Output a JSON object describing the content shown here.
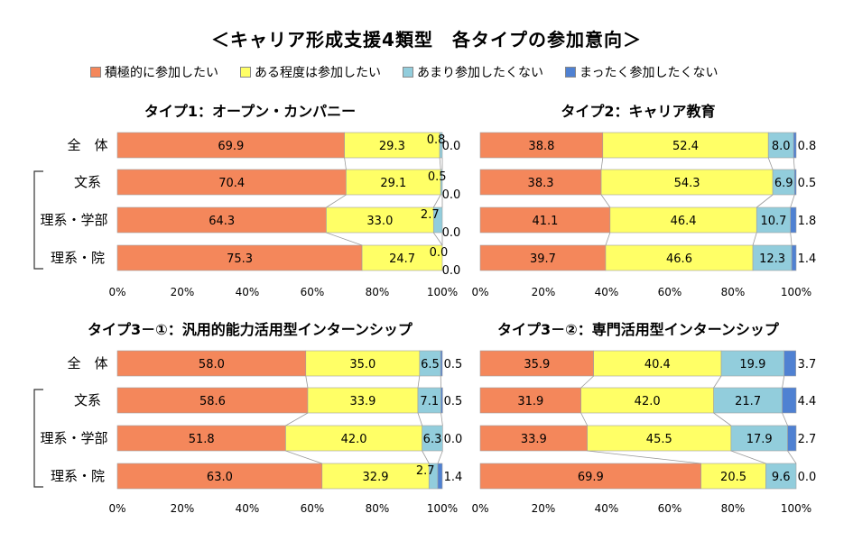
{
  "title": "＜キャリア形成支援4類型　各タイプの参加意向＞",
  "legend": [
    {
      "label": "積極的に参加したい",
      "color": "#f4875b"
    },
    {
      "label": "ある程度は参加したい",
      "color": "#ffff66"
    },
    {
      "label": "あまり参加したくない",
      "color": "#92cddc"
    },
    {
      "label": "まったく参加したくない",
      "color": "#4f81d2"
    }
  ],
  "chart_data": [
    {
      "type": "bar",
      "stacked": true,
      "orientation": "horizontal",
      "title": "タイプ1：オープン・カンパニー",
      "categories": [
        "全　体",
        "文系",
        "理系・学部",
        "理系・院"
      ],
      "series": [
        {
          "name": "積極的に参加したい",
          "values": [
            69.9,
            70.4,
            64.3,
            75.3
          ]
        },
        {
          "name": "ある程度は参加したい",
          "values": [
            29.3,
            29.1,
            33.0,
            24.7
          ]
        },
        {
          "name": "あまり参加したくない",
          "values": [
            0.8,
            0.5,
            2.7,
            0.0
          ]
        },
        {
          "name": "まったく参加したくない",
          "values": [
            0.0,
            0.0,
            0.0,
            0.0
          ]
        }
      ],
      "xlim": [
        0,
        100
      ],
      "xticks": [
        "0%",
        "20%",
        "40%",
        "60%",
        "80%",
        "100%"
      ]
    },
    {
      "type": "bar",
      "stacked": true,
      "orientation": "horizontal",
      "title": "タイプ2：キャリア教育",
      "categories": [
        "全　体",
        "文系",
        "理系・学部",
        "理系・院"
      ],
      "series": [
        {
          "name": "積極的に参加したい",
          "values": [
            38.8,
            38.3,
            41.1,
            39.7
          ]
        },
        {
          "name": "ある程度は参加したい",
          "values": [
            52.4,
            54.3,
            46.4,
            46.6
          ]
        },
        {
          "name": "あまり参加したくない",
          "values": [
            8.0,
            6.9,
            10.7,
            12.3
          ]
        },
        {
          "name": "まったく参加したくない",
          "values": [
            0.8,
            0.5,
            1.8,
            1.4
          ]
        }
      ],
      "xlim": [
        0,
        100
      ],
      "xticks": [
        "0%",
        "20%",
        "40%",
        "60%",
        "80%",
        "100%"
      ]
    },
    {
      "type": "bar",
      "stacked": true,
      "orientation": "horizontal",
      "title": "タイプ3－①：汎用的能力活用型インターンシップ",
      "categories": [
        "全　体",
        "文系",
        "理系・学部",
        "理系・院"
      ],
      "series": [
        {
          "name": "積極的に参加したい",
          "values": [
            58.0,
            58.6,
            51.8,
            63.0
          ]
        },
        {
          "name": "ある程度は参加したい",
          "values": [
            35.0,
            33.9,
            42.0,
            32.9
          ]
        },
        {
          "name": "あまり参加したくない",
          "values": [
            6.5,
            7.1,
            6.3,
            2.7
          ]
        },
        {
          "name": "まったく参加したくない",
          "values": [
            0.5,
            0.5,
            0.0,
            1.4
          ]
        }
      ],
      "xlim": [
        0,
        100
      ],
      "xticks": [
        "0%",
        "20%",
        "40%",
        "60%",
        "80%",
        "100%"
      ]
    },
    {
      "type": "bar",
      "stacked": true,
      "orientation": "horizontal",
      "title": "タイプ3－②：専門活用型インターンシップ",
      "categories": [
        "全　体",
        "文系",
        "理系・学部",
        "理系・院"
      ],
      "series": [
        {
          "name": "積極的に参加したい",
          "values": [
            35.9,
            31.9,
            33.9,
            69.9
          ]
        },
        {
          "name": "ある程度は参加したい",
          "values": [
            40.4,
            42.0,
            45.5,
            20.5
          ]
        },
        {
          "name": "あまり参加したくない",
          "values": [
            19.9,
            21.7,
            17.9,
            9.6
          ]
        },
        {
          "name": "まったく参加したくない",
          "values": [
            3.7,
            4.4,
            2.7,
            0.0
          ]
        }
      ],
      "xlim": [
        0,
        100
      ],
      "xticks": [
        "0%",
        "20%",
        "40%",
        "60%",
        "80%",
        "100%"
      ]
    }
  ]
}
